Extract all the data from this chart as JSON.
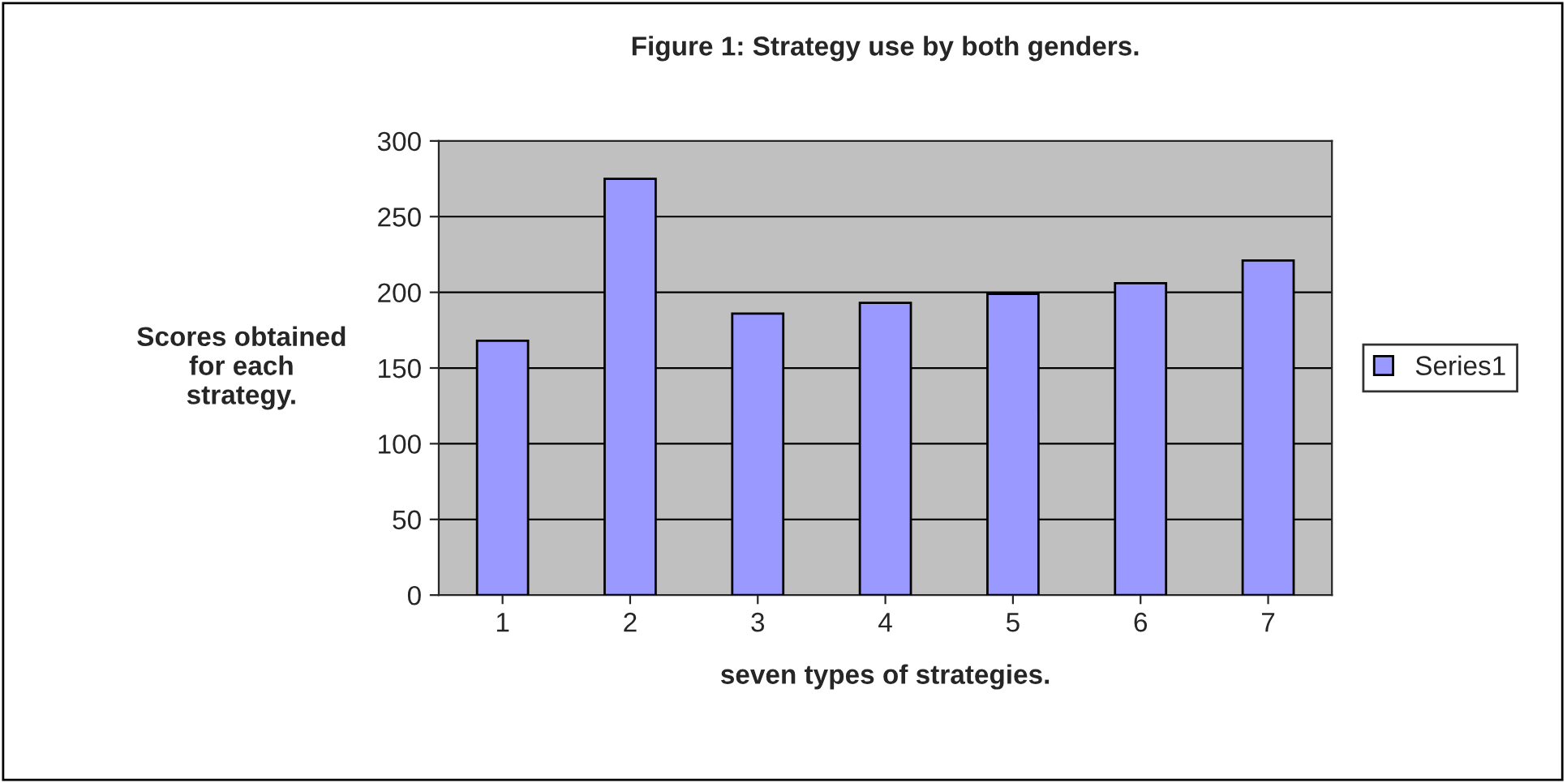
{
  "chart_data": {
    "type": "bar",
    "title": "Figure 1: Strategy use by both genders.",
    "xlabel": "seven types of strategies.",
    "ylabel": "Scores obtained\nfor each\nstrategy.",
    "categories": [
      "1",
      "2",
      "3",
      "4",
      "5",
      "6",
      "7"
    ],
    "series": [
      {
        "name": "Series1",
        "color": "#9999ff",
        "values": [
          168,
          275,
          186,
          193,
          199,
          206,
          221
        ]
      }
    ],
    "ylim": [
      0,
      300
    ],
    "yticks": [
      0,
      50,
      100,
      150,
      200,
      250,
      300
    ],
    "grid": "y",
    "legend": "right"
  }
}
